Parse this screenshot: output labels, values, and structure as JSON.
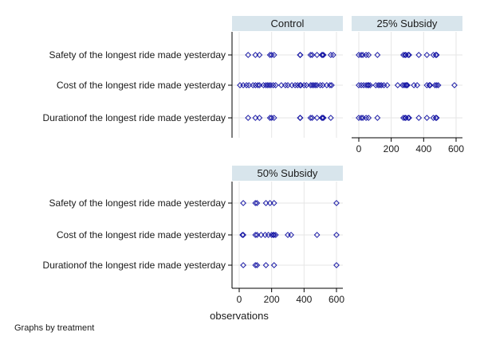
{
  "chart_data": {
    "type": "scatter",
    "note": "Graphs by treatment",
    "xlabel": "observations",
    "xlim": [
      0,
      600
    ],
    "xticks": [
      0,
      200,
      400,
      600
    ],
    "categories": [
      "Safety of the longest ride made yesterday",
      "Cost of the longest ride made yesterday",
      "Durationof the longest ride made yesterday"
    ],
    "marker_color": "#1a1aa6",
    "header_color": "#d8e5ec",
    "panels": [
      {
        "title": "Control",
        "series": [
          {
            "values": [
              55,
              100,
              125,
              190,
              200,
              215,
              375,
              377,
              440,
              450,
              480,
              510,
              515,
              520,
              565,
              580
            ]
          },
          {
            "values": [
              5,
              25,
              45,
              60,
              85,
              100,
              115,
              125,
              150,
              165,
              175,
              185,
              195,
              210,
              225,
              260,
              285,
              300,
              325,
              345,
              360,
              375,
              380,
              400,
              415,
              440,
              450,
              460,
              470,
              480,
              500,
              515,
              540,
              560,
              570
            ]
          },
          {
            "values": [
              55,
              100,
              125,
              190,
              200,
              215,
              375,
              377,
              440,
              450,
              480,
              510,
              515,
              520,
              565
            ]
          }
        ]
      },
      {
        "title": "25% Subsidy",
        "series": [
          {
            "values": [
              0,
              15,
              25,
              45,
              60,
              115,
              275,
              285,
              290,
              305,
              310,
              370,
              420,
              460,
              475,
              480
            ]
          },
          {
            "values": [
              0,
              15,
              30,
              45,
              55,
              60,
              70,
              105,
              120,
              130,
              140,
              155,
              175,
              240,
              270,
              280,
              290,
              295,
              300,
              340,
              360,
              420,
              435,
              440,
              470,
              480,
              490,
              590
            ]
          },
          {
            "values": [
              0,
              15,
              25,
              45,
              60,
              115,
              275,
              285,
              290,
              305,
              310,
              370,
              420,
              460,
              475,
              480
            ]
          }
        ]
      },
      {
        "title": "50% Subsidy",
        "series": [
          {
            "values": [
              25,
              100,
              110,
              165,
              190,
              215,
              600
            ]
          },
          {
            "values": [
              20,
              25,
              100,
              110,
              135,
              160,
              180,
              200,
              210,
              215,
              225,
              300,
              320,
              480,
              600
            ]
          },
          {
            "values": [
              25,
              100,
              110,
              165,
              215,
              600
            ]
          }
        ]
      }
    ]
  }
}
